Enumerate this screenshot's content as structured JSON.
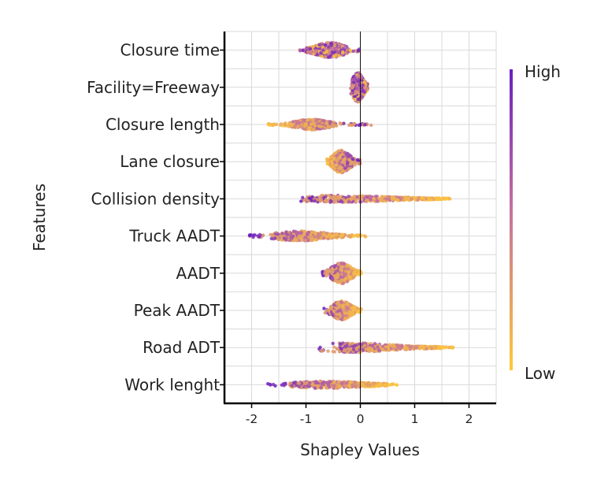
{
  "chart_data": {
    "type": "scatter",
    "subtype": "shap-beeswarm",
    "title": "",
    "xlabel": "Shapley Values",
    "ylabel": "Features",
    "xlim": [
      -2.5,
      2.5
    ],
    "xticks": [
      -2,
      -1,
      0,
      1,
      2
    ],
    "xtick_labels": [
      "-2",
      "-1",
      "0",
      "1",
      "2"
    ],
    "grid": true,
    "reference_line_x": 0,
    "color_scale": {
      "high_label": "High",
      "low_label": "Low",
      "high_color": "#6a1fc0",
      "low_color": "#ffc83a",
      "placement": "right"
    },
    "features": [
      {
        "name": "Closure time",
        "min": -1.15,
        "max": 0.0,
        "core_min": -1.0,
        "core_max": -0.3,
        "peak": -0.55,
        "spread": 0.35,
        "high_side": "mixed"
      },
      {
        "name": "Facility=Freeway",
        "min": -0.18,
        "max": 0.15,
        "core_min": -0.15,
        "core_max": 0.1,
        "peak": -0.05,
        "spread": 0.75,
        "high_side": "mixed"
      },
      {
        "name": "Closure length",
        "min": -1.75,
        "max": 0.2,
        "core_min": -1.3,
        "core_max": -0.5,
        "peak": -0.9,
        "spread": 0.22,
        "high_side": "right"
      },
      {
        "name": "Lane closure",
        "min": -0.62,
        "max": 0.0,
        "core_min": -0.55,
        "core_max": -0.15,
        "peak": -0.35,
        "spread": 0.55,
        "high_side": "right"
      },
      {
        "name": "Collision density",
        "min": -1.1,
        "max": 1.65,
        "core_min": -1.0,
        "core_max": 1.5,
        "peak": -0.4,
        "spread": 0.12,
        "high_side": "left"
      },
      {
        "name": "Truck AADT",
        "min": -2.05,
        "max": 0.1,
        "core_min": -1.6,
        "core_max": -0.3,
        "peak": -1.1,
        "spread": 0.2,
        "high_side": "left"
      },
      {
        "name": "AADT",
        "min": -0.7,
        "max": 0.02,
        "core_min": -0.55,
        "core_max": -0.1,
        "peak": -0.35,
        "spread": 0.5,
        "high_side": "left"
      },
      {
        "name": "Peak AADT",
        "min": -0.68,
        "max": 0.02,
        "core_min": -0.55,
        "core_max": -0.1,
        "peak": -0.35,
        "spread": 0.45,
        "high_side": "left"
      },
      {
        "name": "Road ADT",
        "min": -0.8,
        "max": 1.72,
        "core_min": -0.4,
        "core_max": 1.5,
        "peak": -0.15,
        "spread": 0.2,
        "high_side": "left"
      },
      {
        "name": "Work lenght",
        "min": -1.7,
        "max": 0.68,
        "core_min": -1.3,
        "core_max": 0.5,
        "peak": -0.6,
        "spread": 0.13,
        "high_side": "left"
      }
    ]
  }
}
